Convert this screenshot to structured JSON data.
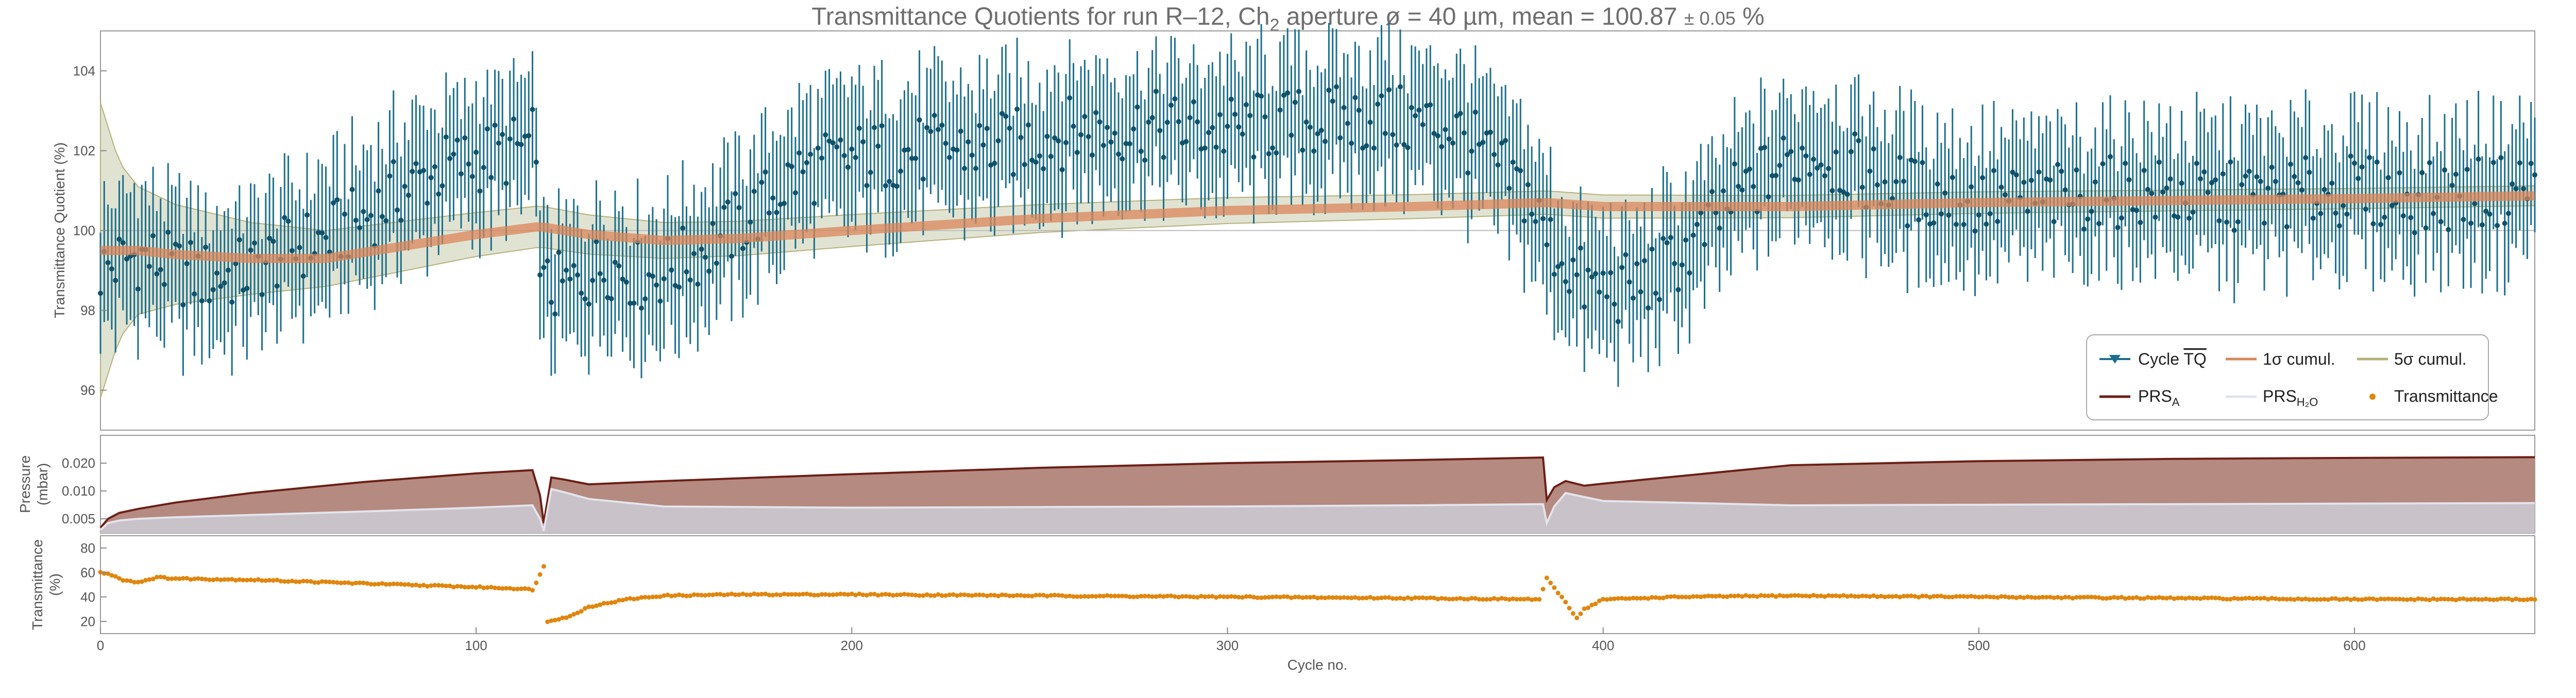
{
  "title": {
    "main": "Transmittance Quotients for run R–12, Ch",
    "sub2": "2",
    "main2": " aperture ø = 40 µm, mean = 100.87 ",
    "pm": "± 0.05",
    "unit": " %"
  },
  "axes": {
    "xlabel": "Cycle no.",
    "ylabel_top": "Transmittance Quotient (%)",
    "ylabel_mid_1": "Pressure",
    "ylabel_mid_2": "(mbar)",
    "ylabel_bot_1": "Transmittance",
    "ylabel_bot_2": "(%)",
    "x_ticks": [
      "0",
      "100",
      "200",
      "300",
      "400",
      "500",
      "600"
    ],
    "top_y_ticks": [
      "96",
      "98",
      "100",
      "102",
      "104"
    ],
    "mid_y_ticks": [
      "0.005",
      "0.010",
      "0.020"
    ],
    "bot_y_ticks": [
      "20",
      "40",
      "60",
      "80"
    ]
  },
  "legend": {
    "cycle": "Cycle ",
    "cycle_sym": "TQ",
    "sig1": "1σ cumul.",
    "sig5": "5σ cumul.",
    "prsa": "PRS",
    "prsa_sub": "A",
    "prsh": "PRS",
    "prsh_sub": "H₂O",
    "trans": "Transmittance"
  },
  "colors": {
    "tq": "#1b6f8c",
    "sig1": "#d9865a",
    "sig5_band": "#d7d9c3",
    "sig5_line": "#b5b07a",
    "prsa": "#6b1f16",
    "prsa_fill": "#b58a80",
    "prsh": "#e4e4ec",
    "prsh_fill": "#c9c2c8",
    "trans": "#e0860e"
  },
  "chart_data": [
    {
      "type": "scatter",
      "panel": "transmittance-quotient",
      "xlim": [
        0,
        648
      ],
      "ylim": [
        95,
        105
      ],
      "series_name": "Cycle TQ",
      "x": [
        0,
        10,
        20,
        30,
        40,
        50,
        60,
        70,
        80,
        90,
        100,
        110,
        115,
        118,
        125,
        135,
        145,
        155,
        165,
        175,
        185,
        200,
        220,
        240,
        260,
        280,
        300,
        320,
        340,
        360,
        380,
        385,
        395,
        405,
        415,
        425,
        435,
        445,
        455,
        465,
        480,
        500,
        520,
        540,
        560,
        580,
        600,
        620,
        640,
        648
      ],
      "y": [
        99.0,
        99.4,
        99.0,
        98.8,
        99.0,
        99.5,
        99.8,
        100.3,
        101.0,
        101.5,
        101.8,
        102.0,
        102.2,
        98.5,
        98.6,
        99.2,
        98.8,
        99.2,
        99.8,
        100.5,
        101.4,
        101.8,
        102.0,
        102.1,
        102.5,
        102.6,
        102.5,
        102.7,
        102.8,
        102.6,
        100.9,
        99.8,
        98.6,
        98.5,
        98.9,
        99.7,
        100.8,
        101.5,
        102.0,
        101.6,
        101.0,
        100.7,
        100.8,
        101.0,
        100.8,
        100.9,
        101.0,
        100.8,
        101.0,
        101.2
      ],
      "error": 1.6,
      "cumul_1sigma": {
        "x": [
          0,
          10,
          20,
          40,
          60,
          80,
          100,
          117,
          130,
          150,
          170,
          200,
          250,
          300,
          350,
          385,
          400,
          450,
          500,
          550,
          600,
          648
        ],
        "y": [
          99.5,
          99.5,
          99.4,
          99.3,
          99.3,
          99.6,
          99.9,
          100.1,
          99.9,
          99.75,
          99.8,
          100.0,
          100.3,
          100.5,
          100.6,
          100.7,
          100.6,
          100.6,
          100.7,
          100.75,
          100.8,
          100.87
        ]
      },
      "cumul_5sigma_halfwidth": {
        "x": [
          0,
          5,
          10,
          20,
          40,
          60,
          100,
          150,
          250,
          350,
          450,
          550,
          648
        ],
        "y": [
          3.7,
          2.2,
          1.6,
          1.25,
          0.9,
          0.7,
          0.55,
          0.45,
          0.35,
          0.3,
          0.28,
          0.26,
          0.25
        ]
      }
    },
    {
      "type": "area",
      "panel": "pressure",
      "xlim": [
        0,
        648
      ],
      "scale": "log",
      "ylim": [
        0.0035,
        0.04
      ],
      "series": [
        {
          "name": "PRS_A",
          "x": [
            0,
            2,
            5,
            10,
            20,
            40,
            70,
            100,
            115,
            117,
            118,
            120,
            123,
            130,
            150,
            200,
            250,
            300,
            350,
            384,
            385,
            387,
            390,
            395,
            400,
            450,
            500,
            550,
            600,
            648
          ],
          "y": [
            0.004,
            0.005,
            0.0058,
            0.0064,
            0.0075,
            0.0095,
            0.0125,
            0.0155,
            0.0168,
            0.009,
            0.0045,
            0.014,
            0.0134,
            0.0118,
            0.0128,
            0.0152,
            0.0178,
            0.02,
            0.0216,
            0.023,
            0.008,
            0.011,
            0.0128,
            0.0114,
            0.012,
            0.019,
            0.021,
            0.0222,
            0.0228,
            0.0232
          ]
        },
        {
          "name": "PRS_H2O",
          "x": [
            0,
            2,
            5,
            10,
            20,
            40,
            70,
            100,
            115,
            117,
            118,
            120,
            123,
            130,
            150,
            200,
            250,
            300,
            350,
            384,
            385,
            387,
            390,
            395,
            400,
            450,
            500,
            550,
            600,
            648
          ],
          "y": [
            0.0038,
            0.0045,
            0.0048,
            0.005,
            0.0052,
            0.0055,
            0.006,
            0.0066,
            0.007,
            0.005,
            0.0037,
            0.0105,
            0.0098,
            0.0082,
            0.0068,
            0.0066,
            0.0067,
            0.0068,
            0.007,
            0.0072,
            0.0045,
            0.0068,
            0.0095,
            0.0086,
            0.0078,
            0.007,
            0.0071,
            0.0072,
            0.0073,
            0.0074
          ]
        }
      ]
    },
    {
      "type": "scatter",
      "panel": "transmittance",
      "xlim": [
        0,
        648
      ],
      "ylim": [
        10,
        90
      ],
      "series_name": "Transmittance",
      "x": [
        0,
        3,
        6,
        10,
        15,
        20,
        40,
        60,
        80,
        100,
        110,
        115,
        117,
        118,
        119,
        120,
        125,
        130,
        140,
        150,
        170,
        200,
        250,
        300,
        350,
        383,
        385,
        387,
        389,
        391,
        393,
        395,
        400,
        420,
        450,
        500,
        550,
        600,
        648
      ],
      "y": [
        60,
        58,
        54,
        52,
        56,
        55,
        54,
        52,
        50,
        48,
        47,
        46,
        58,
        65,
        20,
        21,
        24,
        32,
        38,
        41,
        42,
        42,
        41,
        40,
        39,
        38,
        55,
        47,
        40,
        31,
        23,
        30,
        38,
        40,
        41,
        40,
        39,
        38,
        38
      ]
    }
  ]
}
